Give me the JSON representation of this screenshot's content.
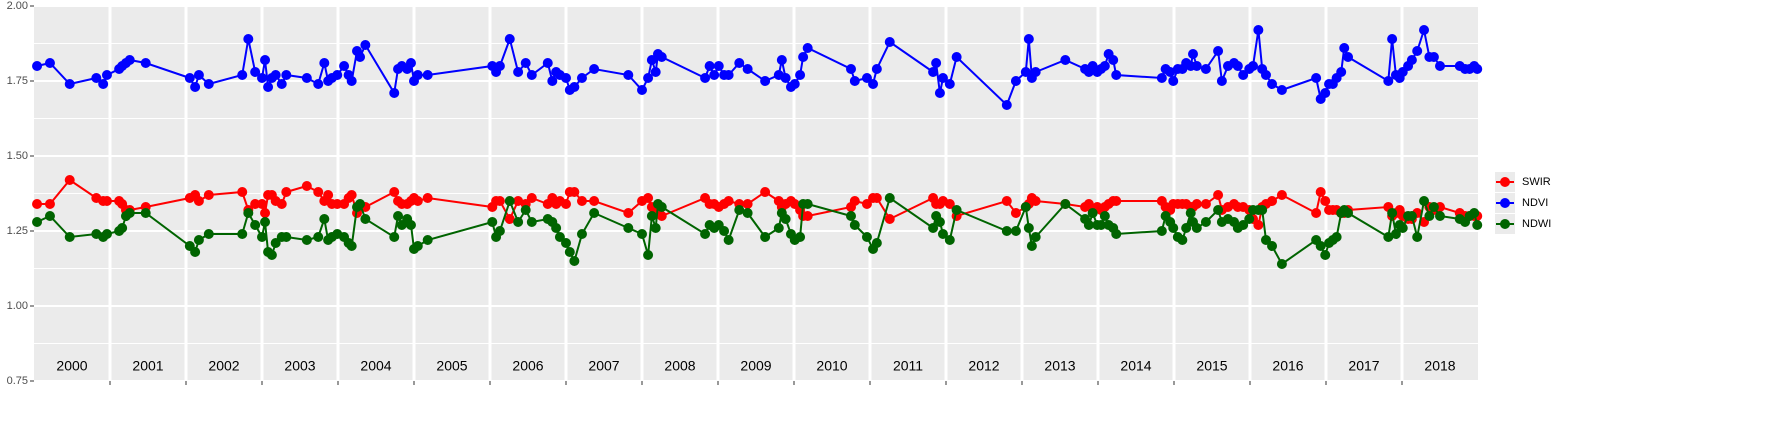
{
  "chart_data": {
    "type": "line",
    "x": [
      2000.04,
      2000.21,
      2000.47,
      2000.82,
      2000.91,
      2000.96,
      2001.12,
      2001.16,
      2001.21,
      2001.26,
      2001.47,
      2002.05,
      2002.12,
      2002.17,
      2002.3,
      2002.74,
      2002.82,
      2002.91,
      2003.0,
      2003.04,
      2003.08,
      2003.13,
      2003.18,
      2003.26,
      2003.32,
      2003.59,
      2003.74,
      2003.82,
      2003.87,
      2003.92,
      2003.99,
      2004.08,
      2004.14,
      2004.18,
      2004.25,
      2004.29,
      2004.36,
      2004.74,
      2004.79,
      2004.84,
      2004.91,
      2004.96,
      2005.0,
      2005.05,
      2005.18,
      2006.03,
      2006.08,
      2006.13,
      2006.26,
      2006.37,
      2006.47,
      2006.55,
      2006.76,
      2006.82,
      2006.87,
      2006.92,
      2007.0,
      2007.05,
      2007.11,
      2007.21,
      2007.37,
      2007.82,
      2008.0,
      2008.08,
      2008.13,
      2008.18,
      2008.21,
      2008.26,
      2008.83,
      2008.89,
      2008.95,
      2009.01,
      2009.08,
      2009.14,
      2009.28,
      2009.39,
      2009.62,
      2009.8,
      2009.84,
      2009.89,
      2009.96,
      2010.01,
      2010.08,
      2010.12,
      2010.18,
      2010.75,
      2010.8,
      2010.96,
      2011.04,
      2011.09,
      2011.26,
      2011.83,
      2011.87,
      2011.92,
      2011.96,
      2012.05,
      2012.14,
      2012.8,
      2012.92,
      2013.05,
      2013.09,
      2013.13,
      2013.18,
      2013.57,
      2013.83,
      2013.88,
      2013.93,
      2013.99,
      2014.04,
      2014.09,
      2014.14,
      2014.2,
      2014.24,
      2014.84,
      2014.89,
      2014.95,
      2014.99,
      2015.05,
      2015.11,
      2015.16,
      2015.22,
      2015.25,
      2015.3,
      2015.42,
      2015.58,
      2015.63,
      2015.71,
      2015.79,
      2015.84,
      2015.91,
      2015.99,
      2016.04,
      2016.11,
      2016.16,
      2016.21,
      2016.29,
      2016.42,
      2016.87,
      2016.93,
      2016.99,
      2017.04,
      2017.09,
      2017.14,
      2017.2,
      2017.24,
      2017.29,
      2017.82,
      2017.87,
      2017.92,
      2017.97,
      2018.01,
      2018.08,
      2018.13,
      2018.2,
      2018.29,
      2018.36,
      2018.42,
      2018.5,
      2018.76,
      2018.83,
      2018.89,
      2018.95,
      2018.99
    ],
    "series": [
      {
        "name": "SWIR",
        "color": "#ff0000",
        "values": [
          1.34,
          1.34,
          1.42,
          1.36,
          1.35,
          1.35,
          1.35,
          1.34,
          1.32,
          1.32,
          1.33,
          1.36,
          1.37,
          1.35,
          1.37,
          1.38,
          1.32,
          1.34,
          1.34,
          1.31,
          1.37,
          1.37,
          1.35,
          1.34,
          1.38,
          1.4,
          1.38,
          1.35,
          1.37,
          1.34,
          1.34,
          1.34,
          1.36,
          1.37,
          1.31,
          1.33,
          1.33,
          1.38,
          1.35,
          1.34,
          1.34,
          1.35,
          1.36,
          1.35,
          1.36,
          1.33,
          1.35,
          1.35,
          1.29,
          1.35,
          1.34,
          1.36,
          1.34,
          1.36,
          1.34,
          1.35,
          1.34,
          1.38,
          1.38,
          1.35,
          1.35,
          1.31,
          1.35,
          1.36,
          1.33,
          1.33,
          1.31,
          1.3,
          1.36,
          1.34,
          1.34,
          1.33,
          1.34,
          1.35,
          1.34,
          1.34,
          1.38,
          1.35,
          1.33,
          1.34,
          1.35,
          1.34,
          1.32,
          1.3,
          1.3,
          1.33,
          1.35,
          1.34,
          1.36,
          1.36,
          1.29,
          1.36,
          1.34,
          1.34,
          1.35,
          1.34,
          1.3,
          1.35,
          1.31,
          1.33,
          1.34,
          1.36,
          1.35,
          1.34,
          1.33,
          1.34,
          1.32,
          1.33,
          1.32,
          1.33,
          1.34,
          1.35,
          1.35,
          1.35,
          1.33,
          1.32,
          1.34,
          1.34,
          1.34,
          1.34,
          1.33,
          1.33,
          1.34,
          1.34,
          1.37,
          1.32,
          1.33,
          1.34,
          1.33,
          1.33,
          1.32,
          1.29,
          1.27,
          1.33,
          1.34,
          1.35,
          1.37,
          1.31,
          1.38,
          1.35,
          1.32,
          1.32,
          1.32,
          1.31,
          1.31,
          1.32,
          1.33,
          1.3,
          1.31,
          1.32,
          1.3,
          1.29,
          1.29,
          1.31,
          1.28,
          1.33,
          1.32,
          1.33,
          1.31,
          1.3,
          1.3,
          1.3,
          1.3
        ]
      },
      {
        "name": "NDVI",
        "color": "#0000ff",
        "values": [
          1.8,
          1.81,
          1.74,
          1.76,
          1.74,
          1.77,
          1.79,
          1.8,
          1.81,
          1.82,
          1.81,
          1.76,
          1.73,
          1.77,
          1.74,
          1.77,
          1.89,
          1.78,
          1.76,
          1.82,
          1.73,
          1.76,
          1.77,
          1.74,
          1.77,
          1.76,
          1.74,
          1.81,
          1.75,
          1.76,
          1.77,
          1.8,
          1.77,
          1.75,
          1.85,
          1.83,
          1.87,
          1.71,
          1.79,
          1.8,
          1.79,
          1.81,
          1.75,
          1.77,
          1.77,
          1.8,
          1.78,
          1.8,
          1.89,
          1.78,
          1.81,
          1.77,
          1.81,
          1.75,
          1.78,
          1.77,
          1.76,
          1.72,
          1.73,
          1.76,
          1.79,
          1.77,
          1.72,
          1.76,
          1.82,
          1.78,
          1.84,
          1.83,
          1.76,
          1.8,
          1.77,
          1.8,
          1.77,
          1.77,
          1.81,
          1.79,
          1.75,
          1.77,
          1.82,
          1.76,
          1.73,
          1.74,
          1.77,
          1.83,
          1.86,
          1.79,
          1.75,
          1.76,
          1.74,
          1.79,
          1.88,
          1.78,
          1.81,
          1.71,
          1.76,
          1.74,
          1.83,
          1.67,
          1.75,
          1.78,
          1.89,
          1.76,
          1.78,
          1.82,
          1.79,
          1.78,
          1.8,
          1.78,
          1.79,
          1.8,
          1.84,
          1.82,
          1.77,
          1.76,
          1.79,
          1.78,
          1.75,
          1.79,
          1.79,
          1.81,
          1.8,
          1.84,
          1.8,
          1.79,
          1.85,
          1.75,
          1.8,
          1.81,
          1.8,
          1.77,
          1.79,
          1.8,
          1.92,
          1.79,
          1.77,
          1.74,
          1.72,
          1.76,
          1.69,
          1.71,
          1.74,
          1.74,
          1.76,
          1.78,
          1.86,
          1.83,
          1.75,
          1.89,
          1.77,
          1.76,
          1.78,
          1.8,
          1.82,
          1.85,
          1.92,
          1.83,
          1.83,
          1.8,
          1.8,
          1.79,
          1.79,
          1.8,
          1.79
        ]
      },
      {
        "name": "NDWI",
        "color": "#006400",
        "values": [
          1.28,
          1.3,
          1.23,
          1.24,
          1.23,
          1.24,
          1.25,
          1.26,
          1.3,
          1.31,
          1.31,
          1.2,
          1.18,
          1.22,
          1.24,
          1.24,
          1.31,
          1.27,
          1.23,
          1.28,
          1.18,
          1.17,
          1.21,
          1.23,
          1.23,
          1.22,
          1.23,
          1.29,
          1.22,
          1.23,
          1.24,
          1.23,
          1.21,
          1.2,
          1.33,
          1.34,
          1.29,
          1.23,
          1.3,
          1.27,
          1.29,
          1.27,
          1.19,
          1.2,
          1.22,
          1.28,
          1.23,
          1.25,
          1.35,
          1.28,
          1.32,
          1.28,
          1.29,
          1.28,
          1.26,
          1.23,
          1.21,
          1.18,
          1.15,
          1.24,
          1.31,
          1.26,
          1.24,
          1.17,
          1.3,
          1.26,
          1.34,
          1.33,
          1.24,
          1.27,
          1.26,
          1.27,
          1.25,
          1.22,
          1.32,
          1.31,
          1.23,
          1.26,
          1.31,
          1.29,
          1.24,
          1.22,
          1.23,
          1.34,
          1.34,
          1.3,
          1.27,
          1.23,
          1.19,
          1.21,
          1.36,
          1.26,
          1.3,
          1.28,
          1.24,
          1.22,
          1.32,
          1.25,
          1.25,
          1.33,
          1.26,
          1.2,
          1.23,
          1.34,
          1.29,
          1.27,
          1.31,
          1.27,
          1.27,
          1.3,
          1.27,
          1.26,
          1.24,
          1.25,
          1.3,
          1.28,
          1.26,
          1.23,
          1.22,
          1.26,
          1.31,
          1.28,
          1.26,
          1.28,
          1.32,
          1.28,
          1.29,
          1.28,
          1.26,
          1.27,
          1.29,
          1.32,
          1.32,
          1.32,
          1.22,
          1.2,
          1.14,
          1.22,
          1.2,
          1.17,
          1.21,
          1.22,
          1.23,
          1.31,
          1.32,
          1.31,
          1.23,
          1.31,
          1.24,
          1.27,
          1.26,
          1.3,
          1.3,
          1.23,
          1.35,
          1.3,
          1.33,
          1.3,
          1.29,
          1.28,
          1.3,
          1.31,
          1.27
        ]
      }
    ],
    "xlim": [
      2000,
      2019
    ],
    "xgrid": [
      2001,
      2002,
      2003,
      2004,
      2005,
      2006,
      2007,
      2008,
      2009,
      2010,
      2011,
      2012,
      2013,
      2014,
      2015,
      2016,
      2017,
      2018
    ],
    "xticks": [
      {
        "value": 2000.5,
        "label": "2000"
      },
      {
        "value": 2001.5,
        "label": "2001"
      },
      {
        "value": 2002.5,
        "label": "2002"
      },
      {
        "value": 2003.5,
        "label": "2003"
      },
      {
        "value": 2004.5,
        "label": "2004"
      },
      {
        "value": 2005.5,
        "label": "2005"
      },
      {
        "value": 2006.5,
        "label": "2006"
      },
      {
        "value": 2007.5,
        "label": "2007"
      },
      {
        "value": 2008.5,
        "label": "2008"
      },
      {
        "value": 2009.5,
        "label": "2009"
      },
      {
        "value": 2010.5,
        "label": "2010"
      },
      {
        "value": 2011.5,
        "label": "2011"
      },
      {
        "value": 2012.5,
        "label": "2012"
      },
      {
        "value": 2013.5,
        "label": "2013"
      },
      {
        "value": 2014.5,
        "label": "2014"
      },
      {
        "value": 2015.5,
        "label": "2015"
      },
      {
        "value": 2016.5,
        "label": "2016"
      },
      {
        "value": 2017.5,
        "label": "2017"
      },
      {
        "value": 2018.5,
        "label": "2018"
      }
    ],
    "ylim": [
      0.75,
      2.0
    ],
    "yticks": [
      0.75,
      {
        "value": 1.0,
        "label": "1.00"
      },
      1.25,
      {
        "value": 1.5,
        "label": "1.50"
      },
      1.75,
      {
        "value": 2.0,
        "label": "2.00"
      }
    ],
    "yminor": [
      0.875,
      1.125,
      1.375,
      1.625,
      1.875
    ],
    "grid": true,
    "legend": "right"
  }
}
